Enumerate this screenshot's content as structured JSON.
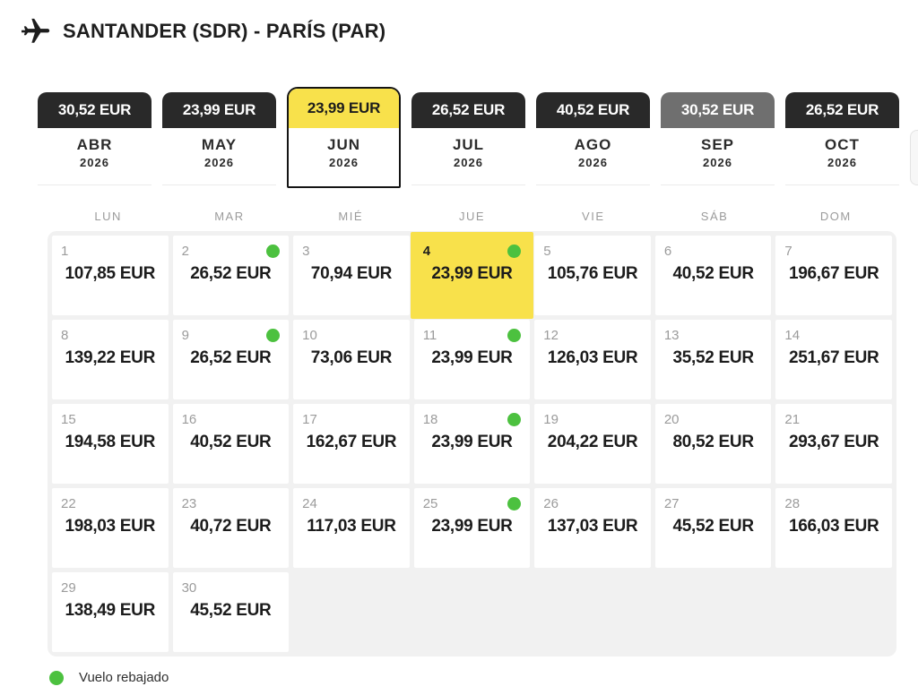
{
  "header": {
    "title": "SANTANDER (SDR) - PARÍS (PAR)"
  },
  "month_tabs": [
    {
      "label": "ABR",
      "year": "2026",
      "price": "30,52 EUR",
      "state": "default"
    },
    {
      "label": "MAY",
      "year": "2026",
      "price": "23,99 EUR",
      "state": "default"
    },
    {
      "label": "JUN",
      "year": "2026",
      "price": "23,99 EUR",
      "state": "selected"
    },
    {
      "label": "JUL",
      "year": "2026",
      "price": "26,52 EUR",
      "state": "default"
    },
    {
      "label": "AGO",
      "year": "2026",
      "price": "40,52 EUR",
      "state": "default"
    },
    {
      "label": "SEP",
      "year": "2026",
      "price": "30,52 EUR",
      "state": "muted"
    },
    {
      "label": "OCT",
      "year": "2026",
      "price": "26,52 EUR",
      "state": "default"
    }
  ],
  "weekdays": [
    "LUN",
    "MAR",
    "MIÉ",
    "JUE",
    "VIE",
    "SÁB",
    "DOM"
  ],
  "calendar": {
    "month": "JUN",
    "year": "2026",
    "days": [
      {
        "day": 1,
        "price": "107,85 EUR",
        "discounted": false,
        "selected": false
      },
      {
        "day": 2,
        "price": "26,52 EUR",
        "discounted": true,
        "selected": false
      },
      {
        "day": 3,
        "price": "70,94 EUR",
        "discounted": false,
        "selected": false
      },
      {
        "day": 4,
        "price": "23,99 EUR",
        "discounted": true,
        "selected": true
      },
      {
        "day": 5,
        "price": "105,76 EUR",
        "discounted": false,
        "selected": false
      },
      {
        "day": 6,
        "price": "40,52 EUR",
        "discounted": false,
        "selected": false
      },
      {
        "day": 7,
        "price": "196,67 EUR",
        "discounted": false,
        "selected": false
      },
      {
        "day": 8,
        "price": "139,22 EUR",
        "discounted": false,
        "selected": false
      },
      {
        "day": 9,
        "price": "26,52 EUR",
        "discounted": true,
        "selected": false
      },
      {
        "day": 10,
        "price": "73,06 EUR",
        "discounted": false,
        "selected": false
      },
      {
        "day": 11,
        "price": "23,99 EUR",
        "discounted": true,
        "selected": false
      },
      {
        "day": 12,
        "price": "126,03 EUR",
        "discounted": false,
        "selected": false
      },
      {
        "day": 13,
        "price": "35,52 EUR",
        "discounted": false,
        "selected": false
      },
      {
        "day": 14,
        "price": "251,67 EUR",
        "discounted": false,
        "selected": false
      },
      {
        "day": 15,
        "price": "194,58 EUR",
        "discounted": false,
        "selected": false
      },
      {
        "day": 16,
        "price": "40,52 EUR",
        "discounted": false,
        "selected": false
      },
      {
        "day": 17,
        "price": "162,67 EUR",
        "discounted": false,
        "selected": false
      },
      {
        "day": 18,
        "price": "23,99 EUR",
        "discounted": true,
        "selected": false
      },
      {
        "day": 19,
        "price": "204,22 EUR",
        "discounted": false,
        "selected": false
      },
      {
        "day": 20,
        "price": "80,52 EUR",
        "discounted": false,
        "selected": false
      },
      {
        "day": 21,
        "price": "293,67 EUR",
        "discounted": false,
        "selected": false
      },
      {
        "day": 22,
        "price": "198,03 EUR",
        "discounted": false,
        "selected": false
      },
      {
        "day": 23,
        "price": "40,72 EUR",
        "discounted": false,
        "selected": false
      },
      {
        "day": 24,
        "price": "117,03 EUR",
        "discounted": false,
        "selected": false
      },
      {
        "day": 25,
        "price": "23,99 EUR",
        "discounted": true,
        "selected": false
      },
      {
        "day": 26,
        "price": "137,03 EUR",
        "discounted": false,
        "selected": false
      },
      {
        "day": 27,
        "price": "45,52 EUR",
        "discounted": false,
        "selected": false
      },
      {
        "day": 28,
        "price": "166,03 EUR",
        "discounted": false,
        "selected": false
      },
      {
        "day": 29,
        "price": "138,49 EUR",
        "discounted": false,
        "selected": false
      },
      {
        "day": 30,
        "price": "45,52 EUR",
        "discounted": false,
        "selected": false
      }
    ],
    "trailing_empty_cells": 5
  },
  "legend": {
    "label": "Vuelo rebajado"
  },
  "colors": {
    "accent_yellow": "#F8E14B",
    "tab_dark": "#292929",
    "tab_muted": "#6F6F6F",
    "dot_green": "#4CC13F"
  }
}
